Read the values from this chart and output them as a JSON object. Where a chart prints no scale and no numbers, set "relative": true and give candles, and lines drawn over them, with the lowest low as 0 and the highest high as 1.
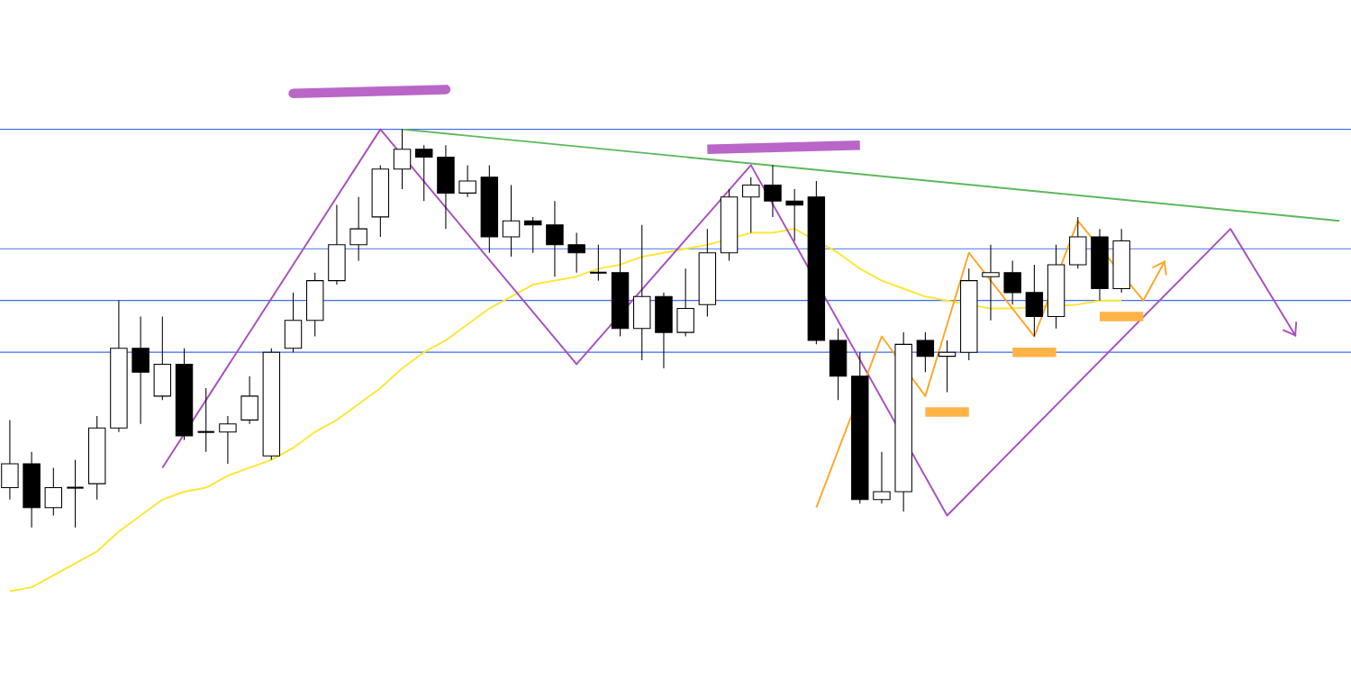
{
  "chart_data": {
    "type": "candlestick",
    "relative": true,
    "categories": [
      null,
      null,
      null,
      null,
      null,
      null,
      null,
      null,
      null,
      null,
      null,
      null,
      null,
      null,
      null,
      null,
      null,
      null,
      null,
      null,
      null,
      null,
      null,
      null,
      null,
      null,
      null,
      null,
      null,
      null,
      null,
      null,
      null,
      null,
      null,
      null,
      null,
      null,
      null,
      null,
      null,
      null,
      null,
      null,
      null,
      null,
      null,
      null,
      null,
      null,
      null,
      null,
      null,
      null,
      null,
      null,
      null,
      null,
      null,
      null,
      null,
      null
    ],
    "ohlc": [
      [
        0.1,
        0.27,
        0.07,
        0.16
      ],
      [
        0.16,
        0.19,
        0.0,
        0.05
      ],
      [
        0.05,
        0.15,
        0.03,
        0.1
      ],
      [
        0.1,
        0.17,
        0.0,
        0.1
      ],
      [
        0.11,
        0.28,
        0.07,
        0.25
      ],
      [
        0.25,
        0.57,
        0.24,
        0.45
      ],
      [
        0.45,
        0.53,
        0.26,
        0.39
      ],
      [
        0.33,
        0.53,
        0.32,
        0.41
      ],
      [
        0.41,
        0.45,
        0.22,
        0.23
      ],
      [
        0.24,
        0.35,
        0.19,
        0.24
      ],
      [
        0.24,
        0.28,
        0.16,
        0.26
      ],
      [
        0.27,
        0.38,
        0.26,
        0.33
      ],
      [
        0.18,
        0.45,
        0.17,
        0.44
      ],
      [
        0.45,
        0.59,
        0.44,
        0.52
      ],
      [
        0.52,
        0.64,
        0.48,
        0.62
      ],
      [
        0.62,
        0.81,
        0.61,
        0.71
      ],
      [
        0.71,
        0.83,
        0.67,
        0.75
      ],
      [
        0.78,
        0.91,
        0.73,
        0.9
      ],
      [
        0.9,
        1.0,
        0.85,
        0.95
      ],
      [
        0.95,
        0.96,
        0.82,
        0.93
      ],
      [
        0.93,
        0.96,
        0.75,
        0.84
      ],
      [
        0.84,
        0.91,
        0.83,
        0.87
      ],
      [
        0.88,
        0.91,
        0.69,
        0.73
      ],
      [
        0.73,
        0.86,
        0.68,
        0.77
      ],
      [
        0.77,
        0.78,
        0.69,
        0.76
      ],
      [
        0.76,
        0.82,
        0.63,
        0.71
      ],
      [
        0.71,
        0.74,
        0.64,
        0.69
      ],
      [
        0.64,
        0.71,
        0.62,
        0.64
      ],
      [
        0.64,
        0.7,
        0.48,
        0.5
      ],
      [
        0.5,
        0.76,
        0.42,
        0.58
      ],
      [
        0.58,
        0.59,
        0.4,
        0.49
      ],
      [
        0.49,
        0.65,
        0.48,
        0.55
      ],
      [
        0.56,
        0.75,
        0.53,
        0.69
      ],
      [
        0.69,
        0.85,
        0.67,
        0.83
      ],
      [
        0.83,
        0.88,
        0.74,
        0.86
      ],
      [
        0.86,
        0.91,
        0.78,
        0.82
      ],
      [
        0.82,
        0.85,
        0.72,
        0.81
      ],
      [
        0.83,
        0.87,
        0.46,
        0.47
      ],
      [
        0.47,
        0.5,
        0.32,
        0.38
      ],
      [
        0.38,
        0.44,
        0.06,
        0.07
      ],
      [
        0.07,
        0.19,
        0.06,
        0.09
      ],
      [
        0.09,
        0.49,
        0.04,
        0.46
      ],
      [
        0.47,
        0.49,
        0.39,
        0.43
      ],
      [
        0.43,
        0.47,
        0.34,
        0.44
      ],
      [
        0.44,
        0.65,
        0.42,
        0.62
      ],
      [
        0.63,
        0.71,
        0.52,
        0.64
      ],
      [
        0.64,
        0.67,
        0.56,
        0.59
      ],
      [
        0.59,
        0.66,
        0.48,
        0.53
      ],
      [
        0.53,
        0.71,
        0.5,
        0.66
      ],
      [
        0.66,
        0.78,
        0.65,
        0.73
      ],
      [
        0.73,
        0.75,
        0.57,
        0.6
      ],
      [
        0.6,
        0.75,
        0.59,
        0.72
      ],
      null,
      null,
      null,
      null,
      null,
      null,
      null,
      null,
      null,
      null
    ],
    "series": [
      {
        "type": "line",
        "color": "#ffe633",
        "values": [
          -0.16,
          -0.15,
          -0.12,
          -0.09,
          -0.06,
          -0.01,
          0.03,
          0.07,
          0.09,
          0.1,
          0.13,
          0.15,
          0.17,
          0.2,
          0.24,
          0.27,
          0.31,
          0.35,
          0.4,
          0.44,
          0.47,
          0.51,
          0.55,
          0.58,
          0.61,
          0.62,
          0.63,
          0.65,
          0.66,
          0.68,
          0.69,
          0.7,
          0.71,
          null,
          0.74,
          0.74,
          0.75,
          null,
          0.69,
          0.65,
          0.62,
          0.6,
          0.58,
          0.57,
          null,
          0.55,
          0.55,
          null,
          null,
          0.56,
          0.57,
          0.57,
          null,
          null,
          null,
          null,
          null,
          null,
          null,
          null,
          null,
          null
        ]
      },
      {
        "type": "line",
        "color": "#5cb85c",
        "values": [
          null,
          null,
          null,
          null,
          null,
          null,
          null,
          null,
          null,
          null,
          null,
          null,
          null,
          null,
          null,
          null,
          null,
          null,
          1.0,
          null,
          null,
          null,
          null,
          null,
          null,
          null,
          null,
          null,
          null,
          null,
          null,
          null,
          null,
          null,
          null,
          null,
          null,
          null,
          null,
          null,
          null,
          null,
          null,
          null,
          null,
          null,
          null,
          null,
          null,
          null,
          null,
          null,
          null,
          null,
          null,
          null,
          null,
          null,
          null,
          null,
          null,
          0.77
        ]
      },
      {
        "type": "line",
        "color": "#a84fc0",
        "values": [
          null,
          null,
          null,
          null,
          null,
          null,
          null,
          0.15,
          null,
          null,
          null,
          null,
          null,
          null,
          null,
          null,
          null,
          1.0,
          null,
          null,
          null,
          null,
          null,
          null,
          null,
          null,
          0.41,
          null,
          null,
          null,
          null,
          null,
          null,
          null,
          0.91,
          null,
          null,
          null,
          null,
          null,
          null,
          null,
          null,
          0.03,
          null,
          null,
          null,
          null,
          null,
          null,
          null,
          null,
          null,
          null,
          null,
          null,
          0.75,
          null,
          null,
          0.48,
          null,
          null
        ]
      },
      {
        "type": "line",
        "color": "#ffa726",
        "values": [
          null,
          null,
          null,
          null,
          null,
          null,
          null,
          null,
          null,
          null,
          null,
          null,
          null,
          null,
          null,
          null,
          null,
          null,
          null,
          null,
          null,
          null,
          null,
          null,
          null,
          null,
          null,
          null,
          null,
          null,
          null,
          null,
          null,
          null,
          null,
          null,
          null,
          0.05,
          null,
          null,
          0.48,
          null,
          0.33,
          null,
          0.69,
          null,
          null,
          0.48,
          null,
          0.77,
          null,
          null,
          0.57,
          0.67,
          null,
          null,
          null,
          null,
          null,
          null,
          null,
          null
        ]
      },
      {
        "type": "line",
        "color": "#b966c8",
        "values": [
          null,
          null,
          null,
          null,
          null,
          null,
          null,
          null,
          null,
          null,
          null,
          null,
          null,
          null,
          null,
          null,
          null,
          null,
          null,
          null,
          null,
          null,
          null,
          null,
          null,
          null,
          null,
          null,
          null,
          null,
          null,
          null,
          0.95,
          null,
          null,
          null,
          null,
          null,
          null,
          0.96,
          null,
          null,
          null,
          null,
          null,
          null,
          null,
          null,
          null,
          null,
          null,
          null,
          null,
          null,
          null,
          null,
          null,
          null,
          null,
          null,
          null,
          null
        ]
      },
      {
        "type": "line",
        "color": "#ffb347",
        "values": [
          null,
          null,
          null,
          null,
          null,
          null,
          null,
          null,
          null,
          null,
          null,
          null,
          null,
          null,
          null,
          null,
          null,
          null,
          null,
          null,
          null,
          null,
          null,
          null,
          null,
          null,
          null,
          null,
          null,
          null,
          null,
          null,
          null,
          null,
          null,
          null,
          null,
          null,
          null,
          null,
          null,
          null,
          0.29,
          null,
          0.29,
          null,
          null,
          null,
          null,
          null,
          null,
          null,
          null,
          null,
          null,
          null,
          null,
          null,
          null,
          null,
          null,
          null
        ]
      },
      {
        "type": "line",
        "color": "#ffb347",
        "values": [
          null,
          null,
          null,
          null,
          null,
          null,
          null,
          null,
          null,
          null,
          null,
          null,
          null,
          null,
          null,
          null,
          null,
          null,
          null,
          null,
          null,
          null,
          null,
          null,
          null,
          null,
          null,
          null,
          null,
          null,
          null,
          null,
          null,
          null,
          null,
          null,
          null,
          null,
          null,
          null,
          null,
          null,
          null,
          null,
          null,
          null,
          0.44,
          null,
          0.44,
          null,
          null,
          null,
          null,
          null,
          null,
          null,
          null,
          null,
          null,
          null,
          null,
          null
        ]
      },
      {
        "type": "line",
        "color": "#ffb347",
        "values": [
          null,
          null,
          null,
          null,
          null,
          null,
          null,
          null,
          null,
          null,
          null,
          null,
          null,
          null,
          null,
          null,
          null,
          null,
          null,
          null,
          null,
          null,
          null,
          null,
          null,
          null,
          null,
          null,
          null,
          null,
          null,
          null,
          null,
          null,
          null,
          null,
          null,
          null,
          null,
          null,
          null,
          null,
          null,
          null,
          null,
          null,
          null,
          null,
          null,
          null,
          0.53,
          null,
          0.53,
          null,
          null,
          null,
          null,
          null,
          null,
          null,
          null,
          null
        ]
      }
    ],
    "ref_lines": [
      {
        "axis": "y",
        "value": 1.0,
        "color": "#3c6cf0"
      },
      {
        "axis": "y",
        "value": 0.7,
        "color": "#3c6cf0"
      },
      {
        "axis": "y",
        "value": 0.57,
        "color": "#3c6cf0"
      },
      {
        "axis": "y",
        "value": 0.44,
        "color": "#3c6cf0"
      }
    ]
  }
}
